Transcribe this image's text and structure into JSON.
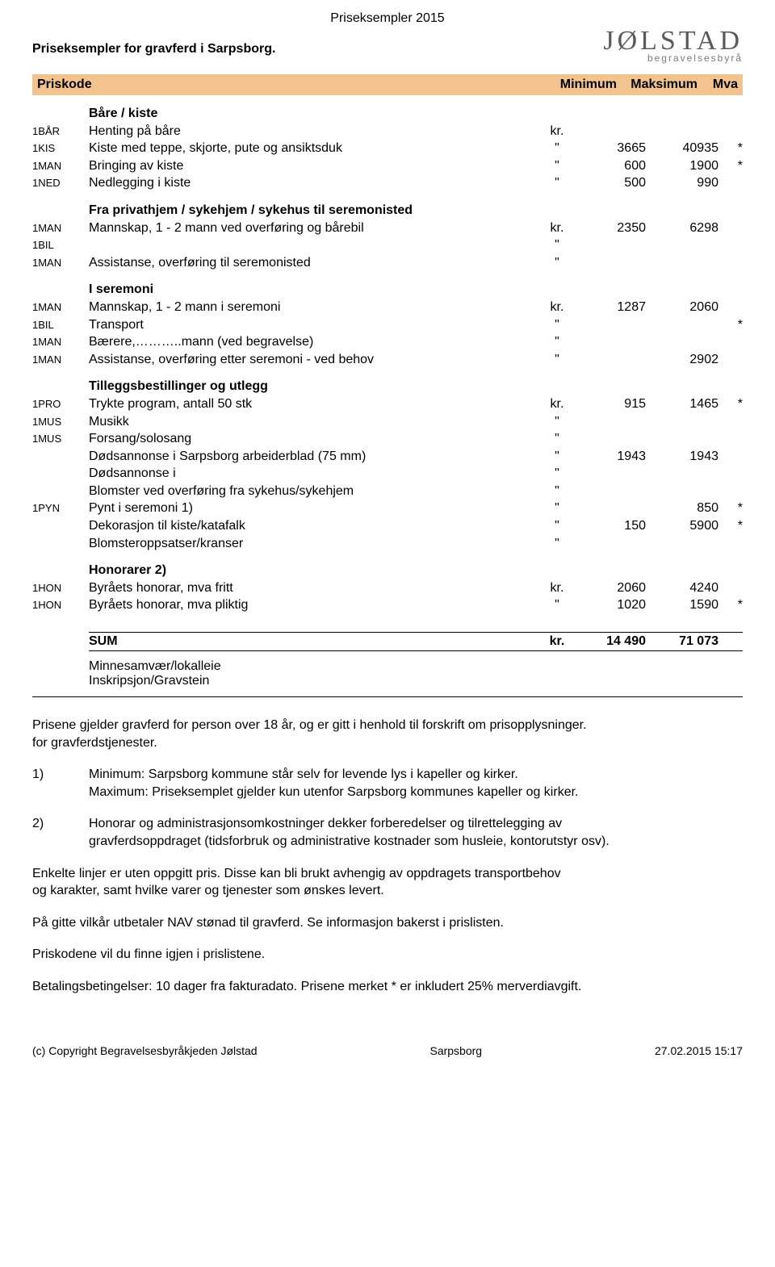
{
  "top_title": "Priseksempler 2015",
  "subtitle": "Priseksempler for gravferd i Sarpsborg.",
  "logo": {
    "main": "JØLSTAD",
    "sub": "begravelsesbyrå"
  },
  "columns": {
    "code": "Priskode",
    "min": "Minimum",
    "max": "Maksimum",
    "mva": "Mva"
  },
  "sections": [
    {
      "title": "Båre / kiste",
      "rows": [
        {
          "code": "1BÅR",
          "desc": "Henting på båre",
          "unit": "kr.",
          "min": "",
          "max": "",
          "mva": ""
        },
        {
          "code": "1KIS",
          "desc": "Kiste med teppe, skjorte, pute og ansiktsduk",
          "unit": "\"",
          "min": "3665",
          "max": "40935",
          "mva": "*"
        },
        {
          "code": "1MAN",
          "desc": "Bringing av kiste",
          "unit": "\"",
          "min": "600",
          "max": "1900",
          "mva": "*"
        },
        {
          "code": "1NED",
          "desc": "Nedlegging i kiste",
          "unit": "\"",
          "min": "500",
          "max": "990",
          "mva": ""
        }
      ]
    },
    {
      "title": "Fra privathjem / sykehjem / sykehus til seremonisted",
      "rows": [
        {
          "code": "1MAN",
          "desc": "Mannskap, 1 - 2 mann ved overføring og bårebil",
          "unit": "kr.",
          "min": "2350",
          "max": "6298",
          "mva": ""
        },
        {
          "code": "1BIL",
          "desc": "",
          "unit": "\"",
          "min": "",
          "max": "",
          "mva": ""
        },
        {
          "code": "1MAN",
          "desc": "Assistanse, overføring til seremonisted",
          "unit": "\"",
          "min": "",
          "max": "",
          "mva": ""
        }
      ]
    },
    {
      "title": "I seremoni",
      "rows": [
        {
          "code": "1MAN",
          "desc": "Mannskap, 1 - 2 mann i seremoni",
          "unit": "kr.",
          "min": "1287",
          "max": "2060",
          "mva": ""
        },
        {
          "code": "1BIL",
          "desc": "Transport",
          "unit": "\"",
          "min": "",
          "max": "",
          "mva": "*"
        },
        {
          "code": "1MAN",
          "desc": "Bærere,………..mann (ved begravelse)",
          "unit": "\"",
          "min": "",
          "max": "",
          "mva": ""
        },
        {
          "code": "1MAN",
          "desc": "Assistanse, overføring etter seremoni - ved behov",
          "unit": "\"",
          "min": "",
          "max": "2902",
          "mva": ""
        }
      ]
    },
    {
      "title": "Tilleggsbestillinger og utlegg",
      "rows": [
        {
          "code": "1PRO",
          "desc": "Trykte program, antall 50 stk",
          "unit": "kr.",
          "min": "915",
          "max": "1465",
          "mva": "*"
        },
        {
          "code": "1MUS",
          "desc": "Musikk",
          "unit": "\"",
          "min": "",
          "max": "",
          "mva": ""
        },
        {
          "code": "1MUS",
          "desc": "Forsang/solosang",
          "unit": "\"",
          "min": "",
          "max": "",
          "mva": ""
        },
        {
          "code": "",
          "desc": "Dødsannonse i Sarpsborg arbeiderblad  (75 mm)",
          "unit": "\"",
          "min": "1943",
          "max": "1943",
          "mva": ""
        },
        {
          "code": "",
          "desc": "Dødsannonse i",
          "unit": "\"",
          "min": "",
          "max": "",
          "mva": ""
        },
        {
          "code": "",
          "desc": "Blomster ved overføring fra sykehus/sykehjem",
          "unit": "\"",
          "min": "",
          "max": "",
          "mva": ""
        },
        {
          "code": "1PYN",
          "desc": "Pynt i seremoni   1)",
          "unit": "\"",
          "min": "",
          "max": "850",
          "mva": "*"
        },
        {
          "code": "",
          "desc": "Dekorasjon til kiste/katafalk",
          "unit": "\"",
          "min": "150",
          "max": "5900",
          "mva": "*"
        },
        {
          "code": "",
          "desc": "Blomsteroppsatser/kranser",
          "unit": "\"",
          "min": "",
          "max": "",
          "mva": ""
        }
      ]
    },
    {
      "title": "Honorarer   2)",
      "rows": [
        {
          "code": "1HON",
          "desc": "Byråets honorar, mva fritt",
          "unit": "kr.",
          "min": "2060",
          "max": "4240",
          "mva": ""
        },
        {
          "code": "1HON",
          "desc": "Byråets honorar, mva pliktig",
          "unit": "\"",
          "min": "1020",
          "max": "1590",
          "mva": "*"
        }
      ]
    }
  ],
  "sum": {
    "label": "SUM",
    "unit": "kr.",
    "min": "14 490",
    "max": "71 073"
  },
  "extras": {
    "line1": "Minnesamvær/lokalleie",
    "line2": "Inskripsjon/Gravstein"
  },
  "notes": {
    "intro1": "Prisene gjelder gravferd for person over 18 år, og er gitt i henhold til forskrift om prisopplysninger.",
    "intro2": "for gravferdstjenester.",
    "n1a": "Minimum: Sarpsborg kommune står selv for levende lys i kapeller og kirker.",
    "n1b": "Maximum: Priseksemplet gjelder kun utenfor Sarpsborg kommunes kapeller og kirker.",
    "n2a": "Honorar og administrasjonsomkostninger dekker forberedelser og tilrettelegging av",
    "n2b": "gravferdsoppdraget (tidsforbruk og administrative kostnader som husleie, kontorutstyr osv).",
    "p3a": "Enkelte linjer er uten oppgitt pris. Disse kan bli brukt avhengig av oppdragets transportbehov",
    "p3b": "og karakter, samt hvilke varer og tjenester som ønskes levert.",
    "p4": "På gitte vilkår utbetaler NAV stønad til gravferd. Se informasjon bakerst i prislisten.",
    "p5": "Priskodene vil du finne igjen i prislistene.",
    "p6": "Betalingsbetingelser: 10 dager fra fakturadato. Prisene merket * er inkludert 25% merverdiavgift."
  },
  "footer": {
    "left": "(c) Copyright Begravelsesbyråkjeden Jølstad",
    "center": "Sarpsborg",
    "right": "27.02.2015 15:17"
  }
}
